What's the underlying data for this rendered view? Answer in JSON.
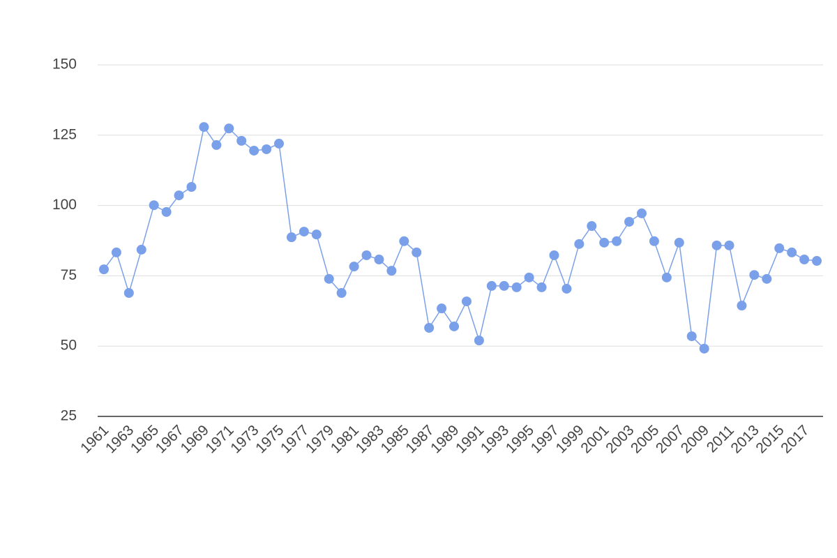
{
  "chart_data": {
    "type": "line",
    "categories": [
      "1961",
      null,
      "1963",
      null,
      "1965",
      null,
      "1967",
      null,
      "1969",
      null,
      "1971",
      null,
      "1973",
      null,
      "1975",
      null,
      "1977",
      null,
      "1979",
      null,
      "1981",
      null,
      "1983",
      null,
      "1985",
      null,
      "1987",
      null,
      "1989",
      null,
      "1991",
      null,
      "1993",
      null,
      "1995",
      null,
      "1997",
      null,
      "1999",
      null,
      "2001",
      null,
      "2003",
      null,
      "2005",
      null,
      "2007",
      null,
      "2009",
      null,
      "2011",
      null,
      "2013",
      null,
      "2015",
      null,
      "2017",
      null
    ],
    "series": [
      {
        "color": "#7ba0ea",
        "values": [
          77.3,
          83.3,
          68.9,
          84.3,
          100.1,
          97.7,
          103.6,
          106.6,
          127.9,
          121.5,
          127.4,
          123.0,
          119.5,
          120.0,
          122.0,
          88.7,
          90.7,
          89.7,
          73.9,
          68.9,
          78.3,
          82.3,
          80.8,
          76.8,
          87.3,
          83.3,
          56.5,
          63.4,
          57.0,
          65.9,
          52.0,
          71.4,
          71.4,
          70.9,
          74.4,
          70.9,
          82.3,
          70.4,
          86.3,
          92.7,
          86.8,
          87.3,
          94.2,
          97.2,
          87.3,
          74.4,
          86.8,
          53.5,
          49.1,
          85.8,
          85.8,
          64.4,
          75.3,
          73.9,
          84.8,
          83.3,
          80.8,
          80.3
        ]
      }
    ],
    "ylim": [
      25,
      150
    ],
    "yticks": [
      25,
      50,
      75,
      100,
      125,
      150
    ],
    "grid": true
  }
}
